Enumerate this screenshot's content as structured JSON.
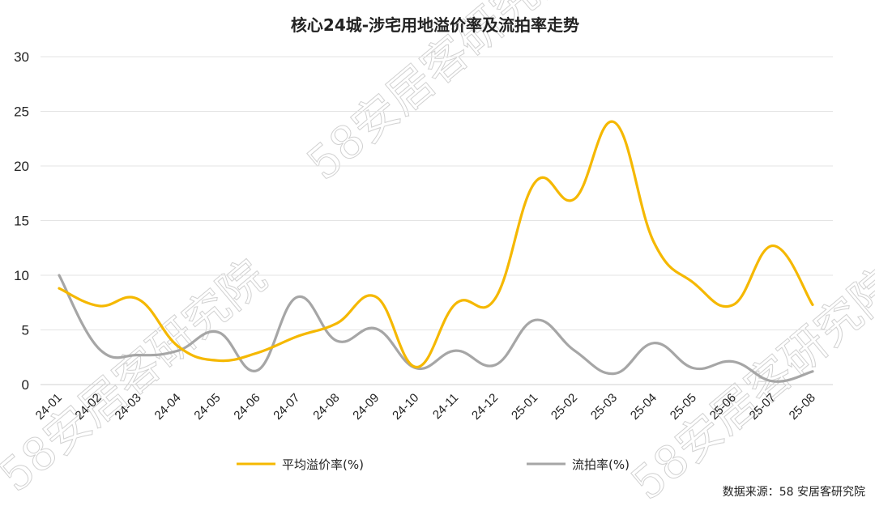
{
  "chart_data": {
    "type": "line",
    "title": "核心24城-涉宅用地溢价率及流拍率走势",
    "categories": [
      "24-01",
      "24-02",
      "24-03",
      "24-04",
      "24-05",
      "24-06",
      "24-07",
      "24-08",
      "24-09",
      "24-10",
      "24-11",
      "24-12",
      "25-01",
      "25-02",
      "25-03",
      "25-04",
      "25-05",
      "25-06",
      "25-07",
      "25-08"
    ],
    "series": [
      {
        "name": "平均溢价率(%)",
        "color": "#F5B800",
        "values": [
          8.8,
          7.2,
          7.8,
          3.5,
          2.2,
          2.9,
          4.4,
          5.6,
          8.0,
          1.6,
          7.4,
          7.9,
          18.5,
          17.0,
          24.0,
          13.0,
          9.3,
          7.3,
          12.7,
          7.3
        ]
      },
      {
        "name": "流拍率(%)",
        "color": "#A6A6A6",
        "values": [
          10.0,
          3.3,
          2.7,
          3.1,
          4.8,
          1.3,
          8.0,
          4.0,
          5.1,
          1.5,
          3.1,
          1.8,
          5.9,
          3.1,
          1.0,
          3.8,
          1.5,
          2.1,
          0.3,
          1.2
        ]
      }
    ],
    "ylim": [
      0,
      30
    ],
    "yticks": [
      "0",
      "5",
      "10",
      "15",
      "20",
      "25",
      "30"
    ],
    "grid": true,
    "legend": "bottom"
  },
  "source": "数据来源：58 安居客研究院",
  "watermark": "58安居客研究院"
}
